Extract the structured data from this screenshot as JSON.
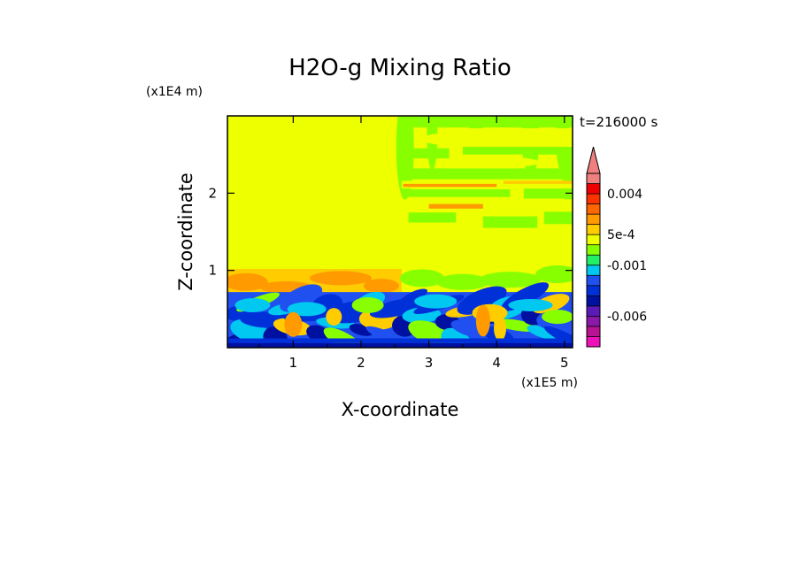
{
  "chart_data": {
    "type": "heatmap",
    "title": "H2O-g Mixing Ratio",
    "xlabel": "X-coordinate",
    "ylabel": "Z-coordinate",
    "x_unit": "(x1E5 m)",
    "y_unit": "(x1E4 m)",
    "time_label": "t=216000 s",
    "xlim": [
      0.03,
      5.12
    ],
    "ylim": [
      0.0,
      3.0
    ],
    "x_ticks": [
      1,
      2,
      3,
      4,
      5
    ],
    "y_ticks": [
      1,
      2
    ],
    "colorbar": {
      "levels": [
        -0.009,
        -0.008,
        -0.007,
        -0.006,
        -0.005,
        -0.004,
        -0.003,
        -0.002,
        -0.001,
        -0.0005,
        0,
        0.0005,
        0.001,
        0.002,
        0.003,
        0.004,
        0.005,
        0.006
      ],
      "colors": [
        "#ee10b8",
        "#b81390",
        "#8a18a8",
        "#5a1ab8",
        "#0010a0",
        "#0030d8",
        "#2050f0",
        "#00c8f0",
        "#22ee66",
        "#88ff00",
        "#eeff00",
        "#ffcc00",
        "#ff9a00",
        "#ff6600",
        "#ff3300",
        "#ee0000",
        "#f08080"
      ],
      "extend_max": true,
      "tick_labels": [
        {
          "value": 0.004,
          "label": "0.004"
        },
        {
          "value": 0.0005,
          "label": "5e-4"
        },
        {
          "value": -0.001,
          "label": "-0.001"
        },
        {
          "value": -0.006,
          "label": "-0.006"
        }
      ]
    },
    "field_regions": [
      {
        "x": [
          0.03,
          2.6
        ],
        "z": [
          1.02,
          3.0
        ],
        "level": "0 to 5e-4"
      },
      {
        "x": [
          2.6,
          5.12
        ],
        "z": [
          1.6,
          3.0
        ],
        "level": "mixed 0 to 5e-4 and -0.001 to -5e-4"
      },
      {
        "x": [
          0.03,
          2.6
        ],
        "z": [
          0.72,
          1.02
        ],
        "level": "5e-4 to 0.001"
      },
      {
        "x": [
          0.03,
          5.12
        ],
        "z": [
          0.0,
          0.72
        ],
        "level": "-0.004 to -0.001"
      }
    ]
  }
}
